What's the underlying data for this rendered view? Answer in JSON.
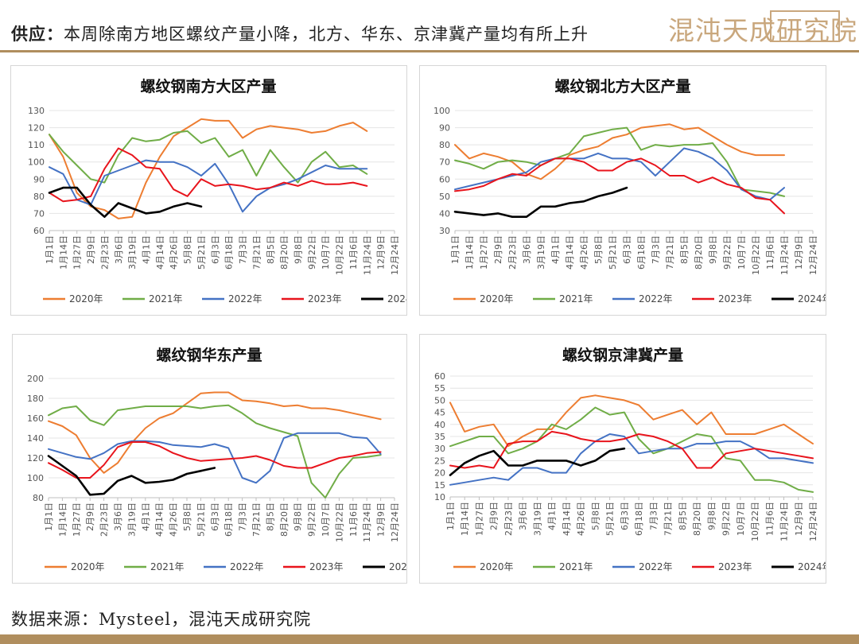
{
  "header": {
    "title_prefix": "供应：",
    "title_text": "本周除南方地区螺纹产量小降，北方、华东、京津冀产量均有所上升",
    "logo_text": "混沌天成研究院"
  },
  "footer": {
    "source": "数据来源：Mysteel，混沌天成研究院"
  },
  "colors": {
    "2020年": "#ed7d31",
    "2021年": "#70ad47",
    "2022年": "#4472c4",
    "2023年": "#e8141c",
    "2024年": "#000000",
    "accent": "#b08e5e"
  },
  "chart_data": [
    {
      "type": "line",
      "title": "螺纹钢南方大区产量",
      "ylim": [
        60,
        130
      ],
      "yticks": [
        60,
        70,
        80,
        90,
        100,
        110,
        120,
        130
      ],
      "categories": [
        "1月1日",
        "1月14日",
        "1月27日",
        "2月9日",
        "2月23日",
        "3月6日",
        "3月19日",
        "4月1日",
        "4月14日",
        "4月26日",
        "5月8日",
        "5月21日",
        "6月3日",
        "6月18日",
        "7月3日",
        "7月21日",
        "8月5日",
        "8月20日",
        "9月8日",
        "9月22日",
        "10月7日",
        "10月22日",
        "11月6日",
        "11月24日",
        "12月9日",
        "12月24日"
      ],
      "series": [
        {
          "name": "2020年",
          "values": [
            116,
            103,
            82,
            74,
            72,
            67,
            68,
            88,
            103,
            115,
            120,
            125,
            124,
            124,
            114,
            119,
            121,
            120,
            119,
            117,
            118,
            121,
            123,
            118,
            null,
            null
          ]
        },
        {
          "name": "2021年",
          "values": [
            116,
            106,
            98,
            90,
            88,
            104,
            114,
            112,
            113,
            117,
            118,
            111,
            114,
            103,
            107,
            92,
            107,
            97,
            88,
            100,
            106,
            97,
            98,
            93,
            null,
            null
          ]
        },
        {
          "name": "2022年",
          "values": [
            97,
            93,
            78,
            75,
            92,
            95,
            98,
            101,
            100,
            100,
            97,
            92,
            99,
            87,
            71,
            80,
            85,
            87,
            90,
            94,
            98,
            96,
            96,
            96,
            null,
            null
          ]
        },
        {
          "name": "2023年",
          "values": [
            82,
            77,
            78,
            80,
            96,
            108,
            104,
            97,
            96,
            84,
            80,
            90,
            86,
            87,
            86,
            84,
            85,
            88,
            86,
            89,
            87,
            87,
            88,
            86,
            null,
            null
          ]
        },
        {
          "name": "2024年",
          "values": [
            82,
            85,
            85,
            75,
            68,
            76,
            73,
            70,
            71,
            74,
            76,
            74,
            null,
            null,
            null,
            null,
            null,
            null,
            null,
            null,
            null,
            null,
            null,
            null,
            null,
            null
          ]
        }
      ]
    },
    {
      "type": "line",
      "title": "螺纹钢北方大区产量",
      "ylim": [
        30,
        100
      ],
      "yticks": [
        30,
        40,
        50,
        60,
        70,
        80,
        90,
        100
      ],
      "categories": [
        "1月1日",
        "1月14日",
        "1月27日",
        "2月9日",
        "2月23日",
        "3月6日",
        "3月19日",
        "4月1日",
        "4月14日",
        "4月26日",
        "5月8日",
        "5月21日",
        "6月3日",
        "6月18日",
        "7月3日",
        "7月21日",
        "8月5日",
        "8月20日",
        "9月8日",
        "9月22日",
        "10月7日",
        "10月22日",
        "11月6日",
        "11月24日",
        "12月9日",
        "12月24日"
      ],
      "series": [
        {
          "name": "2020年",
          "values": [
            80,
            72,
            75,
            73,
            70,
            63,
            60,
            66,
            74,
            77,
            79,
            84,
            86,
            90,
            91,
            92,
            89,
            90,
            85,
            80,
            76,
            74,
            74,
            74,
            null,
            null
          ]
        },
        {
          "name": "2021年",
          "values": [
            71,
            69,
            66,
            70,
            71,
            70,
            68,
            72,
            75,
            85,
            87,
            89,
            90,
            77,
            80,
            79,
            80,
            80,
            81,
            70,
            54,
            53,
            52,
            50,
            null,
            null
          ]
        },
        {
          "name": "2022年",
          "values": [
            54,
            56,
            58,
            60,
            62,
            64,
            70,
            72,
            72,
            72,
            75,
            72,
            72,
            70,
            62,
            70,
            78,
            76,
            72,
            65,
            54,
            50,
            48,
            55,
            null,
            null
          ]
        },
        {
          "name": "2023年",
          "values": [
            53,
            54,
            56,
            60,
            63,
            62,
            68,
            72,
            72,
            70,
            65,
            65,
            70,
            72,
            68,
            62,
            62,
            58,
            61,
            57,
            55,
            49,
            48,
            40,
            null,
            null
          ]
        },
        {
          "name": "2024年",
          "values": [
            41,
            40,
            39,
            40,
            38,
            38,
            44,
            44,
            46,
            47,
            50,
            52,
            55,
            null,
            null,
            null,
            null,
            null,
            null,
            null,
            null,
            null,
            null,
            null,
            null,
            null
          ]
        }
      ]
    },
    {
      "type": "line",
      "title": "螺纹钢华东产量",
      "ylim": [
        80,
        200
      ],
      "yticks": [
        80,
        100,
        120,
        140,
        160,
        180,
        200
      ],
      "categories": [
        "1月1日",
        "1月14日",
        "1月27日",
        "2月9日",
        "2月23日",
        "3月6日",
        "3月19日",
        "4月1日",
        "4月14日",
        "4月26日",
        "5月8日",
        "5月21日",
        "6月3日",
        "6月18日",
        "7月3日",
        "7月21日",
        "8月5日",
        "8月20日",
        "9月8日",
        "9月22日",
        "10月7日",
        "10月22日",
        "11月6日",
        "11月24日",
        "12月9日",
        "12月24日"
      ],
      "series": [
        {
          "name": "2020年",
          "values": [
            157,
            152,
            143,
            120,
            105,
            115,
            135,
            150,
            160,
            165,
            175,
            185,
            186,
            186,
            178,
            177,
            175,
            172,
            173,
            170,
            170,
            168,
            165,
            162,
            159,
            null
          ]
        },
        {
          "name": "2021年",
          "values": [
            163,
            170,
            172,
            158,
            153,
            168,
            170,
            172,
            172,
            172,
            172,
            170,
            172,
            173,
            165,
            155,
            150,
            146,
            142,
            95,
            80,
            104,
            120,
            121,
            123,
            null
          ]
        },
        {
          "name": "2022年",
          "values": [
            129,
            125,
            121,
            119,
            125,
            134,
            137,
            137,
            136,
            133,
            132,
            131,
            134,
            130,
            100,
            95,
            107,
            140,
            145,
            145,
            145,
            145,
            141,
            140,
            124,
            null
          ]
        },
        {
          "name": "2023年",
          "values": [
            115,
            108,
            100,
            100,
            113,
            131,
            136,
            136,
            132,
            125,
            120,
            117,
            118,
            119,
            120,
            122,
            118,
            112,
            110,
            110,
            115,
            120,
            122,
            125,
            126,
            null
          ]
        },
        {
          "name": "2024年",
          "values": [
            122,
            112,
            102,
            83,
            84,
            97,
            102,
            95,
            96,
            98,
            104,
            107,
            110,
            null,
            null,
            null,
            null,
            null,
            null,
            null,
            null,
            null,
            null,
            null,
            null,
            null
          ]
        }
      ]
    },
    {
      "type": "line",
      "title": "螺纹钢京津冀产量",
      "ylim": [
        10,
        60
      ],
      "yticks": [
        10,
        15,
        20,
        25,
        30,
        35,
        40,
        45,
        50,
        55,
        60
      ],
      "categories": [
        "1月1日",
        "1月14日",
        "1月27日",
        "2月9日",
        "2月23日",
        "3月6日",
        "3月19日",
        "4月1日",
        "4月14日",
        "4月26日",
        "5月8日",
        "5月21日",
        "6月3日",
        "6月18日",
        "7月3日",
        "7月21日",
        "8月5日",
        "8月20日",
        "9月8日",
        "9月22日",
        "10月7日",
        "10月22日",
        "11月6日",
        "11月24日",
        "12月9日",
        "12月24日"
      ],
      "series": [
        {
          "name": "2020年",
          "values": [
            49,
            37,
            39,
            40,
            31,
            35,
            38,
            38,
            45,
            51,
            52,
            51,
            50,
            48,
            42,
            44,
            46,
            40,
            45,
            36,
            36,
            36,
            38,
            40,
            36,
            32
          ]
        },
        {
          "name": "2021年",
          "values": [
            31,
            33,
            35,
            35,
            28,
            30,
            33,
            40,
            38,
            42,
            47,
            44,
            45,
            34,
            28,
            30,
            33,
            36,
            35,
            26,
            25,
            17,
            17,
            16,
            13,
            12
          ]
        },
        {
          "name": "2022年",
          "values": [
            15,
            16,
            17,
            18,
            17,
            22,
            22,
            20,
            20,
            28,
            33,
            36,
            35,
            28,
            29,
            30,
            30,
            32,
            32,
            33,
            33,
            30,
            26,
            26,
            25,
            24
          ]
        },
        {
          "name": "2023年",
          "values": [
            23,
            22,
            23,
            22,
            32,
            33,
            33,
            37,
            36,
            34,
            33,
            33,
            34,
            36,
            35,
            33,
            30,
            22,
            22,
            28,
            29,
            30,
            29,
            28,
            27,
            26
          ]
        },
        {
          "name": "2024年",
          "values": [
            19,
            24,
            27,
            29,
            23,
            23,
            25,
            25,
            25,
            23,
            25,
            29,
            30,
            null,
            null,
            null,
            null,
            null,
            null,
            null,
            null,
            null,
            null,
            null,
            null,
            null
          ]
        }
      ]
    }
  ]
}
